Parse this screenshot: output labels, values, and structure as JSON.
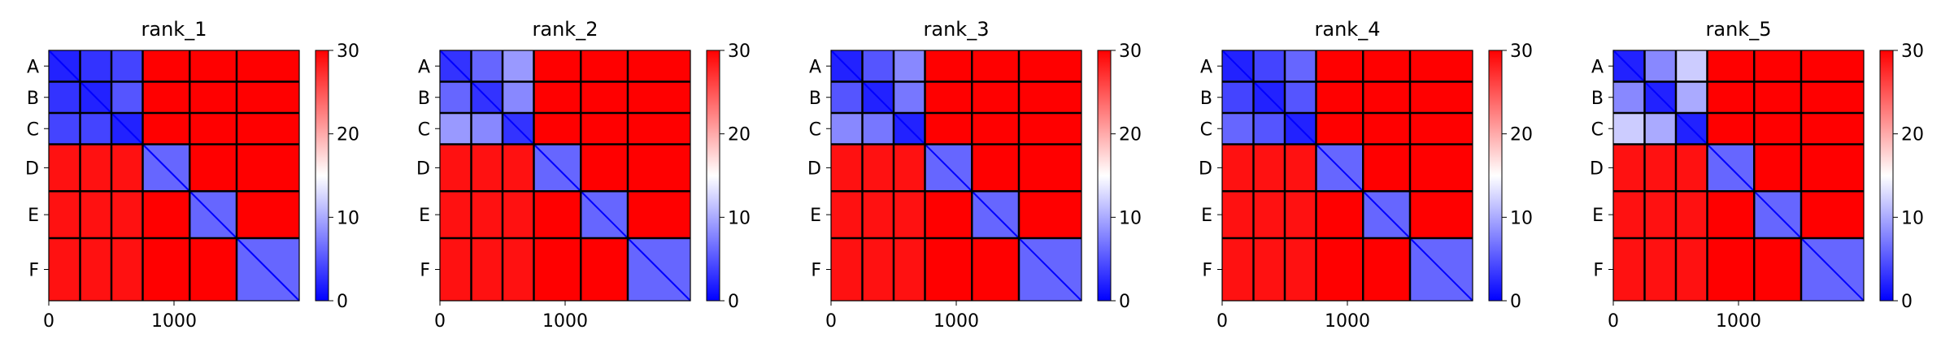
{
  "chart_data": [
    {
      "type": "heatmap",
      "title": "rank_1",
      "row_labels": [
        "A",
        "B",
        "C",
        "D",
        "E",
        "F"
      ],
      "x_ticks": [
        "0",
        "1000"
      ],
      "x_tick_values": [
        0,
        1000
      ],
      "x_range": [
        0,
        2000
      ],
      "colorbar": {
        "ticks": [
          "0",
          "10",
          "20",
          "30"
        ],
        "tick_values": [
          0,
          10,
          20,
          30
        ],
        "range": [
          0,
          30
        ],
        "colormap": "bwr"
      },
      "block_bounds": [
        0,
        250,
        500,
        750,
        1125,
        1500,
        2000
      ],
      "block_mean_values": [
        [
          2,
          3,
          4,
          30,
          30,
          30
        ],
        [
          3,
          2,
          5,
          30,
          30,
          30
        ],
        [
          4,
          4,
          2,
          30,
          30,
          30
        ],
        [
          29,
          29,
          29,
          6,
          30,
          30
        ],
        [
          29,
          29,
          29,
          30,
          6,
          30
        ],
        [
          29,
          29,
          29,
          30,
          30,
          6
        ]
      ]
    },
    {
      "type": "heatmap",
      "title": "rank_2",
      "row_labels": [
        "A",
        "B",
        "C",
        "D",
        "E",
        "F"
      ],
      "x_ticks": [
        "0",
        "1000"
      ],
      "x_tick_values": [
        0,
        1000
      ],
      "x_range": [
        0,
        2000
      ],
      "colorbar": {
        "ticks": [
          "0",
          "10",
          "20",
          "30"
        ],
        "tick_values": [
          0,
          10,
          20,
          30
        ],
        "range": [
          0,
          30
        ],
        "colormap": "bwr"
      },
      "block_bounds": [
        0,
        250,
        500,
        750,
        1125,
        1500,
        2000
      ],
      "block_mean_values": [
        [
          3,
          6,
          9,
          30,
          30,
          30
        ],
        [
          6,
          3,
          8,
          30,
          30,
          30
        ],
        [
          9,
          8,
          3,
          30,
          30,
          30
        ],
        [
          29,
          29,
          29,
          6,
          30,
          30
        ],
        [
          29,
          29,
          29,
          30,
          6,
          30
        ],
        [
          29,
          29,
          29,
          30,
          30,
          6
        ]
      ]
    },
    {
      "type": "heatmap",
      "title": "rank_3",
      "row_labels": [
        "A",
        "B",
        "C",
        "D",
        "E",
        "F"
      ],
      "x_ticks": [
        "0",
        "1000"
      ],
      "x_tick_values": [
        0,
        1000
      ],
      "x_range": [
        0,
        2000
      ],
      "colorbar": {
        "ticks": [
          "0",
          "10",
          "20",
          "30"
        ],
        "tick_values": [
          0,
          10,
          20,
          30
        ],
        "range": [
          0,
          30
        ],
        "colormap": "bwr"
      },
      "block_bounds": [
        0,
        250,
        500,
        750,
        1125,
        1500,
        2000
      ],
      "block_mean_values": [
        [
          2,
          5,
          8,
          30,
          30,
          30
        ],
        [
          5,
          2,
          7,
          30,
          30,
          30
        ],
        [
          8,
          7,
          2,
          30,
          30,
          30
        ],
        [
          29,
          29,
          29,
          6,
          30,
          30
        ],
        [
          29,
          29,
          29,
          30,
          6,
          30
        ],
        [
          29,
          29,
          29,
          30,
          30,
          6
        ]
      ]
    },
    {
      "type": "heatmap",
      "title": "rank_4",
      "row_labels": [
        "A",
        "B",
        "C",
        "D",
        "E",
        "F"
      ],
      "x_ticks": [
        "0",
        "1000"
      ],
      "x_tick_values": [
        0,
        1000
      ],
      "x_range": [
        0,
        2000
      ],
      "colorbar": {
        "ticks": [
          "0",
          "10",
          "20",
          "30"
        ],
        "tick_values": [
          0,
          10,
          20,
          30
        ],
        "range": [
          0,
          30
        ],
        "colormap": "bwr"
      },
      "block_bounds": [
        0,
        250,
        500,
        750,
        1125,
        1500,
        2000
      ],
      "block_mean_values": [
        [
          2,
          4,
          6,
          30,
          30,
          30
        ],
        [
          4,
          2,
          5,
          30,
          30,
          30
        ],
        [
          6,
          5,
          2,
          30,
          30,
          30
        ],
        [
          29,
          29,
          29,
          6,
          30,
          30
        ],
        [
          29,
          29,
          29,
          30,
          6,
          30
        ],
        [
          29,
          29,
          29,
          30,
          30,
          6
        ]
      ]
    },
    {
      "type": "heatmap",
      "title": "rank_5",
      "row_labels": [
        "A",
        "B",
        "C",
        "D",
        "E",
        "F"
      ],
      "x_ticks": [
        "0",
        "1000"
      ],
      "x_tick_values": [
        0,
        1000
      ],
      "x_range": [
        0,
        2000
      ],
      "colorbar": {
        "ticks": [
          "0",
          "10",
          "20",
          "30"
        ],
        "tick_values": [
          0,
          10,
          20,
          30
        ],
        "range": [
          0,
          30
        ],
        "colormap": "bwr"
      },
      "block_bounds": [
        0,
        250,
        500,
        750,
        1125,
        1500,
        2000
      ],
      "block_mean_values": [
        [
          2,
          8,
          12,
          30,
          30,
          30
        ],
        [
          8,
          2,
          10,
          30,
          30,
          30
        ],
        [
          12,
          10,
          2,
          30,
          30,
          30
        ],
        [
          29,
          29,
          29,
          6,
          30,
          30
        ],
        [
          29,
          29,
          29,
          30,
          6,
          30
        ],
        [
          29,
          29,
          29,
          30,
          30,
          6
        ]
      ]
    }
  ]
}
